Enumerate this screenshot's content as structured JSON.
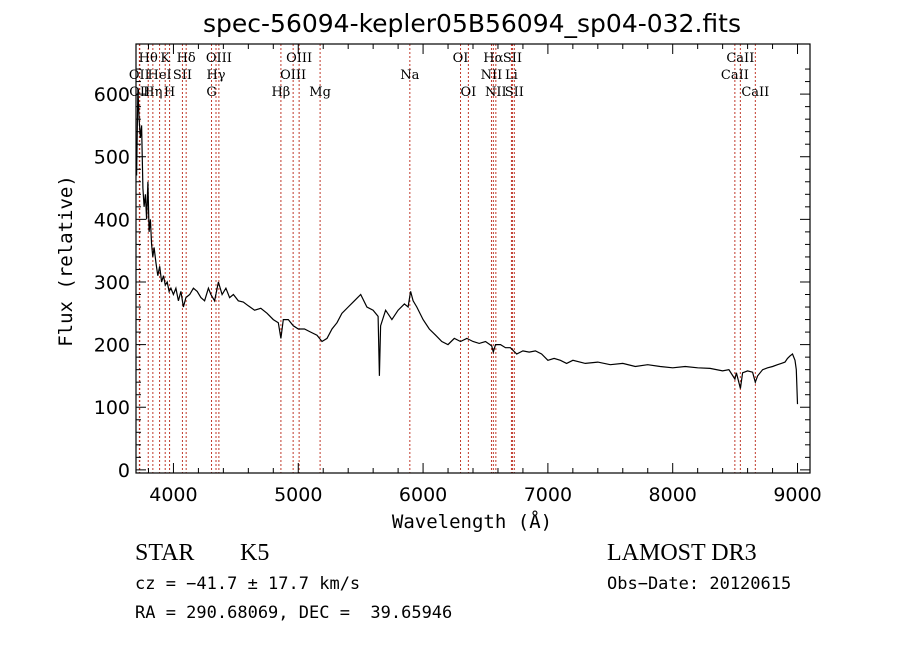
{
  "chart_data": {
    "type": "line",
    "title": "spec-56094-kepler05B56094_sp04-032.fits",
    "xlabel": "Wavelength (Å)",
    "ylabel": "Flux (relative)",
    "xlim": [
      3700,
      9100
    ],
    "ylim": [
      -5,
      680
    ],
    "xticks": [
      4000,
      5000,
      6000,
      7000,
      8000,
      9000
    ],
    "yticks": [
      0,
      100,
      200,
      300,
      400,
      500,
      600
    ],
    "series": [
      {
        "name": "flux",
        "x": [
          3705,
          3715,
          3725,
          3735,
          3745,
          3755,
          3765,
          3775,
          3785,
          3795,
          3805,
          3815,
          3825,
          3835,
          3845,
          3860,
          3875,
          3890,
          3905,
          3920,
          3935,
          3950,
          3965,
          3980,
          4000,
          4020,
          4040,
          4060,
          4080,
          4100,
          4130,
          4160,
          4190,
          4220,
          4250,
          4280,
          4300,
          4330,
          4360,
          4390,
          4420,
          4450,
          4480,
          4520,
          4560,
          4600,
          4650,
          4700,
          4750,
          4800,
          4840,
          4861,
          4880,
          4920,
          4960,
          5000,
          5050,
          5100,
          5150,
          5190,
          5230,
          5270,
          5310,
          5350,
          5400,
          5450,
          5500,
          5550,
          5600,
          5640,
          5650,
          5660,
          5700,
          5750,
          5800,
          5850,
          5880,
          5900,
          5920,
          5950,
          6000,
          6050,
          6100,
          6150,
          6200,
          6250,
          6300,
          6350,
          6400,
          6450,
          6500,
          6550,
          6563,
          6580,
          6620,
          6660,
          6700,
          6750,
          6800,
          6850,
          6900,
          6950,
          7000,
          7050,
          7100,
          7150,
          7200,
          7300,
          7400,
          7500,
          7600,
          7700,
          7800,
          7900,
          8000,
          8100,
          8200,
          8300,
          8400,
          8450,
          8498,
          8510,
          8542,
          8560,
          8600,
          8640,
          8662,
          8680,
          8720,
          8760,
          8800,
          8840,
          8870,
          8900,
          8920,
          8940,
          8960,
          8980,
          8990,
          9000
        ],
        "values": [
          470,
          610,
          560,
          530,
          550,
          450,
          420,
          440,
          400,
          460,
          380,
          400,
          360,
          340,
          355,
          330,
          310,
          325,
          300,
          310,
          295,
          300,
          285,
          290,
          280,
          290,
          270,
          285,
          260,
          275,
          280,
          290,
          285,
          275,
          270,
          290,
          280,
          270,
          300,
          280,
          290,
          275,
          280,
          270,
          268,
          262,
          255,
          258,
          250,
          240,
          235,
          210,
          240,
          240,
          230,
          225,
          225,
          220,
          215,
          205,
          210,
          225,
          235,
          250,
          260,
          270,
          280,
          260,
          255,
          245,
          150,
          230,
          255,
          240,
          255,
          265,
          260,
          285,
          270,
          260,
          240,
          225,
          215,
          205,
          200,
          210,
          205,
          210,
          205,
          202,
          205,
          198,
          188,
          200,
          200,
          195,
          195,
          185,
          190,
          188,
          190,
          185,
          175,
          178,
          175,
          170,
          175,
          170,
          172,
          168,
          170,
          165,
          168,
          165,
          163,
          165,
          163,
          162,
          158,
          160,
          145,
          155,
          130,
          155,
          158,
          156,
          140,
          150,
          160,
          163,
          165,
          168,
          170,
          172,
          178,
          182,
          185,
          175,
          160,
          105
        ]
      }
    ],
    "lines": [
      {
        "label": "Hθ",
        "wave": 3798,
        "row": 1
      },
      {
        "label": "OII",
        "wave": 3727,
        "row": 2
      },
      {
        "label": "OII",
        "wave": 3730,
        "row": 3
      },
      {
        "label": "Hη",
        "wave": 3835,
        "row": 3
      },
      {
        "label": "HeI",
        "wave": 3889,
        "row": 2
      },
      {
        "label": "K",
        "wave": 3934,
        "row": 1
      },
      {
        "label": "H",
        "wave": 3969,
        "row": 3
      },
      {
        "label": "SII",
        "wave": 4072,
        "row": 2
      },
      {
        "label": "Hδ",
        "wave": 4102,
        "row": 1
      },
      {
        "label": "OIII",
        "wave": 4364,
        "row": 1
      },
      {
        "label": "Hγ",
        "wave": 4341,
        "row": 2
      },
      {
        "label": "G",
        "wave": 4305,
        "row": 3
      },
      {
        "label": "Hβ",
        "wave": 4861,
        "row": 3
      },
      {
        "label": "OIII",
        "wave": 4959,
        "row": 2
      },
      {
        "label": "OIII",
        "wave": 5007,
        "row": 1
      },
      {
        "label": "Mg",
        "wave": 5175,
        "row": 3
      },
      {
        "label": "Na",
        "wave": 5894,
        "row": 2
      },
      {
        "label": "OI",
        "wave": 6300,
        "row": 1
      },
      {
        "label": "OI",
        "wave": 6363,
        "row": 3
      },
      {
        "label": "Hα",
        "wave": 6563,
        "row": 1
      },
      {
        "label": "NII",
        "wave": 6548,
        "row": 2
      },
      {
        "label": "NII",
        "wave": 6583,
        "row": 3
      },
      {
        "label": "SII",
        "wave": 6716,
        "row": 1
      },
      {
        "label": "Li",
        "wave": 6708,
        "row": 2
      },
      {
        "label": "SII",
        "wave": 6731,
        "row": 3
      },
      {
        "label": "CaII",
        "wave": 8542,
        "row": 1
      },
      {
        "label": "CaII",
        "wave": 8498,
        "row": 2
      },
      {
        "label": "CaII",
        "wave": 8662,
        "row": 3
      }
    ],
    "line_color": "#c0392b"
  },
  "info": {
    "class": "STAR",
    "subclass": "K5",
    "survey": "LAMOST DR3",
    "cz": "cz = −41.7 ± 17.7 km/s",
    "obs_date": "Obs−Date: 20120615",
    "radec": "RA = 290.68069, DEC =  39.65946"
  }
}
